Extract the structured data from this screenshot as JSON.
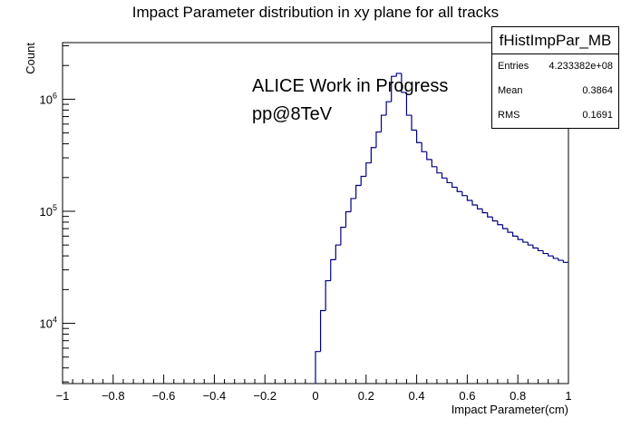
{
  "title": "Impact Parameter distribution in xy plane for all tracks",
  "stats": {
    "name": "fHistImpPar_MB",
    "rows": [
      {
        "key": "Entries",
        "value": "4.233382e+08"
      },
      {
        "key": "Mean",
        "value": "0.3864"
      },
      {
        "key": "RMS",
        "value": "0.1691"
      }
    ]
  },
  "annotations": [
    "ALICE Work in Progress",
    "pp@8TeV"
  ],
  "chart_data": {
    "type": "histogram",
    "title": "Impact Parameter distribution in xy plane for all tracks",
    "xlabel": "Impact Parameter(cm)",
    "ylabel": "Count",
    "xlim": [
      -1,
      1
    ],
    "ylim": [
      2900,
      3200000
    ],
    "log_y": true,
    "grid": false,
    "line_color": "#000080",
    "x_tick_labels": [
      "−1",
      "−0.8",
      "−0.6",
      "−0.4",
      "−0.2",
      "0",
      "0.2",
      "0.4",
      "0.6",
      "0.8",
      "1"
    ],
    "x_tick_values": [
      -1,
      -0.8,
      -0.6,
      -0.4,
      -0.2,
      0,
      0.2,
      0.4,
      0.6,
      0.8,
      1
    ],
    "y_tick_labels": [
      {
        "base": "10",
        "exp": "4",
        "value": 10000
      },
      {
        "base": "10",
        "exp": "5",
        "value": 100000
      },
      {
        "base": "10",
        "exp": "6",
        "value": 1000000
      }
    ],
    "bin_width": 0.02,
    "bin_starts": [
      0.0,
      0.02,
      0.04,
      0.06,
      0.08,
      0.1,
      0.12,
      0.14,
      0.16,
      0.18,
      0.2,
      0.22,
      0.24,
      0.26,
      0.28,
      0.3,
      0.32,
      0.34,
      0.36,
      0.38,
      0.4,
      0.42,
      0.44,
      0.46,
      0.48,
      0.5,
      0.52,
      0.54,
      0.56,
      0.58,
      0.6,
      0.62,
      0.64,
      0.66,
      0.68,
      0.7,
      0.72,
      0.74,
      0.76,
      0.78,
      0.8,
      0.82,
      0.84,
      0.86,
      0.88,
      0.9,
      0.92,
      0.94,
      0.96,
      0.98
    ],
    "counts": [
      5600,
      13000,
      24000,
      37000,
      50000,
      72000,
      99000,
      130000,
      170000,
      205000,
      270000,
      370000,
      510000,
      720000,
      950000,
      1600000,
      1700000,
      1150000,
      720000,
      530000,
      410000,
      340000,
      290000,
      250000,
      220000,
      198000,
      180000,
      164000,
      150000,
      138000,
      125000,
      114000,
      105000,
      97000,
      89000,
      82000,
      76000,
      70000,
      65000,
      60000,
      56000,
      53000,
      50000,
      47000,
      44500,
      42000,
      40000,
      38000,
      36500,
      35000
    ]
  }
}
